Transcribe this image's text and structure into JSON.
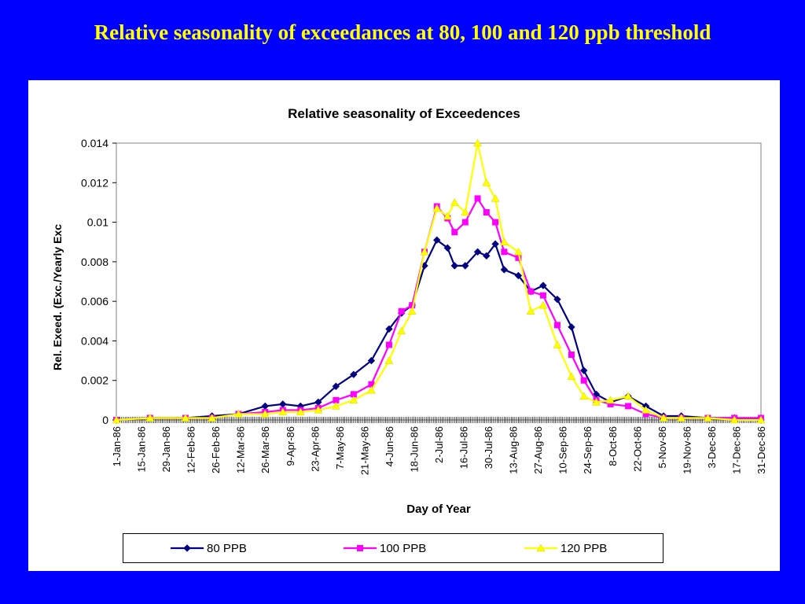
{
  "slide": {
    "title": "Relative seasonality of exceedances at 80, 100 and 120 ppb threshold",
    "background_color": "#0000ff",
    "title_color": "#ffff00"
  },
  "chart_data": {
    "type": "line",
    "title": "Relative seasonality of Exceedences",
    "xlabel": "Day of Year",
    "ylabel": "Rel. Exeed. (Exc./Yearly Exc",
    "ylim": [
      0,
      0.014
    ],
    "yticks": [
      "0",
      "0.002",
      "0.004",
      "0.006",
      "0.008",
      "0.01",
      "0.012",
      "0.014"
    ],
    "xlim": [
      1,
      365
    ],
    "xtick_labels": [
      "1-Jan-86",
      "15-Jan-86",
      "29-Jan-86",
      "12-Feb-86",
      "26-Feb-86",
      "12-Mar-86",
      "26-Mar-86",
      "9-Apr-86",
      "23-Apr-86",
      "7-May-86",
      "21-May-86",
      "4-Jun-86",
      "18-Jun-86",
      "2-Jul-86",
      "16-Jul-86",
      "30-Jul-86",
      "13-Aug-86",
      "27-Aug-86",
      "10-Sep-86",
      "24-Sep-86",
      "8-Oct-86",
      "22-Oct-86",
      "5-Nov-86",
      "19-Nov-86",
      "3-Dec-86",
      "17-Dec-86",
      "31-Dec-86"
    ],
    "grid": "horizontal-top-only",
    "legend": "bottom",
    "series": [
      {
        "name": "80 PPB",
        "color": "#000080",
        "marker": "diamond",
        "x": [
          1,
          20,
          40,
          55,
          70,
          85,
          95,
          105,
          115,
          125,
          135,
          145,
          155,
          162,
          168,
          175,
          182,
          188,
          192,
          198,
          205,
          210,
          215,
          220,
          228,
          235,
          242,
          250,
          258,
          265,
          272,
          280,
          290,
          300,
          310,
          320,
          335,
          350,
          365
        ],
        "y": [
          0,
          0.0001,
          0.0001,
          0.0002,
          0.0003,
          0.0007,
          0.0008,
          0.0007,
          0.0009,
          0.0017,
          0.0023,
          0.003,
          0.0046,
          0.0054,
          0.0058,
          0.0078,
          0.0091,
          0.0087,
          0.0078,
          0.0078,
          0.0085,
          0.0083,
          0.0089,
          0.0076,
          0.0073,
          0.0065,
          0.0068,
          0.0061,
          0.0047,
          0.0025,
          0.0013,
          0.0009,
          0.0012,
          0.0007,
          0.0002,
          0.0002,
          0.0001,
          0.0001,
          0
        ]
      },
      {
        "name": "100 PPB",
        "color": "#ff00ff",
        "marker": "square",
        "x": [
          1,
          20,
          40,
          55,
          70,
          85,
          95,
          105,
          115,
          125,
          135,
          145,
          155,
          162,
          168,
          175,
          182,
          188,
          192,
          198,
          205,
          210,
          215,
          220,
          228,
          235,
          242,
          250,
          258,
          265,
          272,
          280,
          290,
          300,
          310,
          320,
          335,
          350,
          365
        ],
        "y": [
          0,
          0.0001,
          0.0001,
          0.0001,
          0.0003,
          0.0004,
          0.0005,
          0.0005,
          0.0006,
          0.001,
          0.0013,
          0.0018,
          0.0038,
          0.0055,
          0.0058,
          0.0085,
          0.0108,
          0.0102,
          0.0095,
          0.01,
          0.0112,
          0.0105,
          0.01,
          0.0085,
          0.0082,
          0.0065,
          0.0063,
          0.0048,
          0.0033,
          0.002,
          0.001,
          0.0008,
          0.0007,
          0.0003,
          0.0001,
          0.0001,
          0.0001,
          0.0001,
          0.0001
        ]
      },
      {
        "name": "120 PPB",
        "color": "#ffff00",
        "marker": "triangle",
        "x": [
          1,
          20,
          40,
          55,
          70,
          85,
          95,
          105,
          115,
          125,
          135,
          145,
          155,
          162,
          168,
          175,
          182,
          188,
          192,
          198,
          205,
          210,
          215,
          220,
          228,
          235,
          242,
          250,
          258,
          265,
          272,
          280,
          290,
          300,
          310,
          320,
          335,
          350,
          365
        ],
        "y": [
          0,
          0.0001,
          0.0001,
          0.0001,
          0.0003,
          0.0003,
          0.0004,
          0.0004,
          0.0005,
          0.0007,
          0.001,
          0.0015,
          0.003,
          0.0045,
          0.0055,
          0.0085,
          0.0107,
          0.0103,
          0.011,
          0.0105,
          0.014,
          0.012,
          0.0112,
          0.009,
          0.0085,
          0.0055,
          0.0058,
          0.0038,
          0.0022,
          0.0012,
          0.0009,
          0.001,
          0.0012,
          0.0005,
          0.0001,
          0.0001,
          0.0001,
          0,
          0
        ]
      }
    ]
  }
}
